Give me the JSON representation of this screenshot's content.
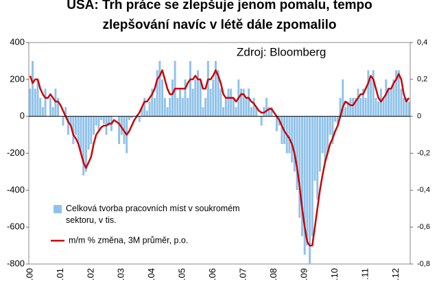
{
  "chart_data": {
    "type": "bar_line",
    "title": [
      "USA: Trh práce se zlepšuje jenom pomalu, tempo",
      "zlepšování navíc v létě dále zpomalilo"
    ],
    "annotation": "Zdroj: Bloomberg",
    "categories": [
      ".00",
      null,
      null,
      null,
      null,
      null,
      null,
      null,
      null,
      null,
      null,
      null,
      ".01",
      null,
      null,
      null,
      null,
      null,
      null,
      null,
      null,
      null,
      null,
      null,
      ".02",
      null,
      null,
      null,
      null,
      null,
      null,
      null,
      null,
      null,
      null,
      null,
      ".03",
      null,
      null,
      null,
      null,
      null,
      null,
      null,
      null,
      null,
      null,
      null,
      ".04",
      null,
      null,
      null,
      null,
      null,
      null,
      null,
      null,
      null,
      null,
      null,
      ".05",
      null,
      null,
      null,
      null,
      null,
      null,
      null,
      null,
      null,
      null,
      null,
      ".06",
      null,
      null,
      null,
      null,
      null,
      null,
      null,
      null,
      null,
      null,
      null,
      ".07",
      null,
      null,
      null,
      null,
      null,
      null,
      null,
      null,
      null,
      null,
      null,
      ".08",
      null,
      null,
      null,
      null,
      null,
      null,
      null,
      null,
      null,
      null,
      null,
      ".09",
      null,
      null,
      null,
      null,
      null,
      null,
      null,
      null,
      null,
      null,
      null,
      ".10",
      null,
      null,
      null,
      null,
      null,
      null,
      null,
      null,
      null,
      null,
      null,
      ".11",
      null,
      null,
      null,
      null,
      null,
      null,
      null,
      null,
      null,
      null,
      null,
      ".12",
      null,
      null,
      null,
      null,
      null
    ],
    "series": [
      {
        "name": "Celková tvorba pracovních míst v soukromém sektoru, v tis.",
        "type": "bar",
        "color": "#8ec2ea",
        "values": [
          150,
          300,
          150,
          200,
          100,
          50,
          150,
          0,
          100,
          50,
          150,
          100,
          0,
          -50,
          50,
          -100,
          -50,
          -150,
          -100,
          -150,
          -200,
          -320,
          -300,
          -180,
          -150,
          -100,
          -50,
          -80,
          -20,
          -40,
          -100,
          -50,
          -80,
          0,
          0,
          -150,
          -100,
          -150,
          -200,
          -20,
          -10,
          0,
          10,
          -30,
          50,
          100,
          30,
          80,
          150,
          100,
          250,
          300,
          200,
          100,
          50,
          100,
          200,
          300,
          100,
          150,
          100,
          200,
          100,
          300,
          150,
          200,
          250,
          200,
          50,
          100,
          300,
          150,
          200,
          300,
          250,
          150,
          50,
          100,
          150,
          150,
          100,
          50,
          200,
          150,
          150,
          100,
          150,
          50,
          100,
          50,
          0,
          -50,
          50,
          100,
          50,
          50,
          0,
          -80,
          -50,
          -150,
          -150,
          -200,
          -200,
          -250,
          -300,
          -400,
          -550,
          -650,
          -750,
          -700,
          -800,
          -650,
          -350,
          -450,
          -300,
          -200,
          -250,
          -200,
          -100,
          -150,
          -30,
          -40,
          100,
          200,
          50,
          80,
          100,
          100,
          100,
          150,
          100,
          150,
          100,
          250,
          200,
          250,
          100,
          80,
          150,
          100,
          200,
          150,
          150,
          200,
          250,
          250,
          150,
          100,
          100,
          80
        ]
      },
      {
        "name": "m/m % změna, 3M průměr, p.o.",
        "type": "line",
        "axis": "y2",
        "color": "#cc0000",
        "values": [
          0.22,
          0.18,
          0.2,
          0.2,
          0.15,
          0.12,
          0.1,
          0.1,
          0.12,
          0.1,
          0.08,
          0.08,
          0.06,
          0.03,
          0,
          -0.03,
          -0.05,
          -0.1,
          -0.12,
          -0.15,
          -0.2,
          -0.25,
          -0.28,
          -0.25,
          -0.22,
          -0.15,
          -0.1,
          -0.08,
          -0.06,
          -0.05,
          -0.05,
          -0.04,
          -0.04,
          -0.02,
          -0.03,
          -0.04,
          -0.06,
          -0.08,
          -0.1,
          -0.08,
          -0.05,
          -0.02,
          0,
          0.02,
          0.05,
          0.08,
          0.08,
          0.1,
          0.12,
          0.15,
          0.2,
          0.22,
          0.25,
          0.2,
          0.15,
          0.12,
          0.12,
          0.15,
          0.15,
          0.15,
          0.15,
          0.15,
          0.18,
          0.2,
          0.2,
          0.22,
          0.2,
          0.2,
          0.15,
          0.15,
          0.2,
          0.2,
          0.22,
          0.25,
          0.22,
          0.18,
          0.12,
          0.1,
          0.1,
          0.1,
          0.1,
          0.08,
          0.1,
          0.12,
          0.12,
          0.1,
          0.1,
          0.08,
          0.07,
          0.05,
          0.03,
          0.02,
          0.02,
          0.03,
          0.04,
          0.04,
          0.02,
          0,
          -0.02,
          -0.05,
          -0.08,
          -0.1,
          -0.12,
          -0.15,
          -0.2,
          -0.28,
          -0.38,
          -0.5,
          -0.6,
          -0.68,
          -0.7,
          -0.7,
          -0.6,
          -0.5,
          -0.4,
          -0.32,
          -0.25,
          -0.2,
          -0.15,
          -0.12,
          -0.08,
          -0.05,
          0,
          0.05,
          0.08,
          0.07,
          0.06,
          0.06,
          0.08,
          0.1,
          0.12,
          0.12,
          0.15,
          0.18,
          0.22,
          0.2,
          0.15,
          0.1,
          0.08,
          0.1,
          0.12,
          0.15,
          0.15,
          0.18,
          0.2,
          0.23,
          0.2,
          0.12,
          0.08,
          0.1
        ]
      }
    ],
    "ylim": [
      -800,
      400
    ],
    "yticks": [
      -800,
      -600,
      -400,
      -200,
      0,
      200,
      400
    ],
    "y2lim": [
      -0.8,
      0.4
    ],
    "y2ticks": [
      {
        "value": -0.8,
        "label": "-0,8"
      },
      {
        "value": -0.6,
        "label": "-0,6"
      },
      {
        "value": -0.4,
        "label": "-0,4"
      },
      {
        "value": -0.2,
        "label": "-0,2"
      },
      0,
      {
        "value": 0.2,
        "label": "0,2"
      },
      {
        "value": 0.4,
        "label": "0,4"
      }
    ]
  }
}
